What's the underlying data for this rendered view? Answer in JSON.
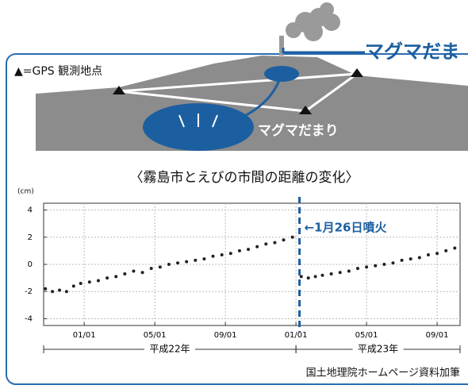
{
  "illustration": {
    "heading": "マグマだま",
    "legend": "▲=GPS 観測地点",
    "magma_label": "マグマだまり"
  },
  "chart_data": {
    "type": "scatter",
    "title": "〈霧島市とえびの市間の距離の変化〉",
    "y_unit": "(cm)",
    "color": "#222222",
    "x": [
      -2.2,
      -1.8,
      -1.4,
      -1.0,
      -0.6,
      -0.2,
      0.3,
      0.8,
      1.3,
      1.8,
      2.3,
      2.8,
      3.3,
      3.8,
      4.3,
      4.8,
      5.3,
      5.8,
      6.3,
      6.8,
      7.3,
      7.8,
      8.3,
      8.8,
      9.3,
      9.8,
      10.3,
      10.8,
      11.3,
      11.8,
      12.3,
      12.7,
      13.1,
      13.5,
      14.0,
      14.5,
      15.0,
      15.5,
      16.0,
      16.5,
      17.0,
      17.5,
      18.0,
      18.5,
      19.0,
      19.5,
      20.0,
      20.5,
      21.0
    ],
    "values": [
      -1.8,
      -2.0,
      -1.9,
      -2.0,
      -1.6,
      -1.4,
      -1.3,
      -1.2,
      -1.0,
      -0.9,
      -0.7,
      -0.5,
      -0.6,
      -0.3,
      -0.2,
      0.0,
      0.1,
      0.2,
      0.3,
      0.4,
      0.6,
      0.7,
      0.8,
      1.0,
      1.1,
      1.3,
      1.5,
      1.6,
      1.8,
      2.0,
      -0.9,
      -1.0,
      -0.9,
      -0.8,
      -0.7,
      -0.6,
      -0.5,
      -0.3,
      -0.2,
      -0.1,
      0.0,
      0.1,
      0.3,
      0.4,
      0.5,
      0.7,
      0.8,
      1.0,
      1.2
    ],
    "xlim": [
      -2.3,
      21.3
    ],
    "ylim": [
      -4.5,
      4.5
    ],
    "xticks": [
      {
        "value": 0,
        "label": "01/01"
      },
      {
        "value": 4,
        "label": "05/01"
      },
      {
        "value": 8,
        "label": "09/01"
      },
      {
        "value": 12,
        "label": "01/01"
      },
      {
        "value": 16,
        "label": "05/01"
      },
      {
        "value": 20,
        "label": "09/01"
      }
    ],
    "yticks": [
      -4,
      -2,
      0,
      2,
      4
    ],
    "grid": true,
    "annotation": {
      "x": 12.2,
      "label": "←1月26日噴火"
    },
    "periods": [
      {
        "label": "平成22年",
        "range": [
          -2.3,
          12
        ]
      },
      {
        "label": "平成23年",
        "range": [
          12,
          21.3
        ]
      }
    ]
  },
  "credit": "国土地理院ホームページ資料加筆"
}
